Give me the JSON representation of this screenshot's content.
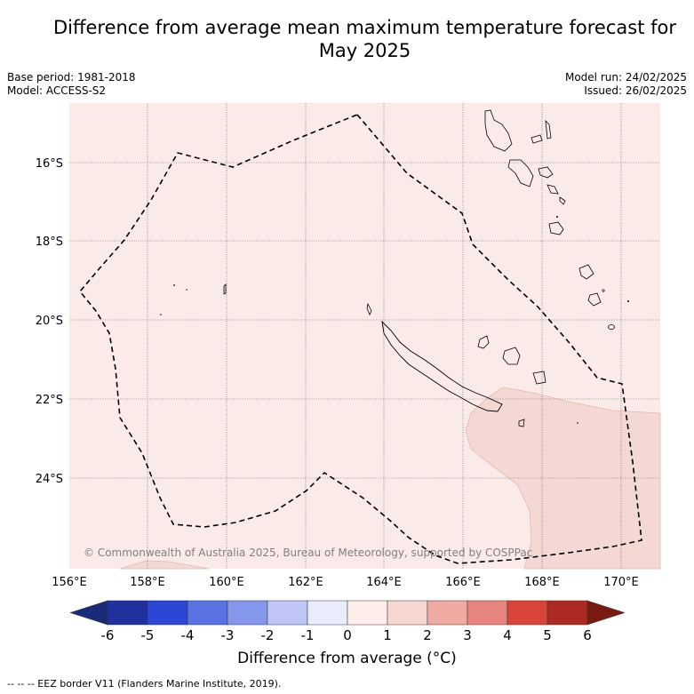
{
  "title_line1": "Difference from average mean maximum temperature forecast for",
  "title_line2": "May 2025",
  "meta": {
    "base_period": "Base period: 1981-2018",
    "model": "Model: ACCESS-S2",
    "model_run": "Model run: 24/02/2025",
    "issued": "Issued: 26/02/2025"
  },
  "map": {
    "lon_ticks": [
      "156°E",
      "158°E",
      "160°E",
      "162°E",
      "164°E",
      "166°E",
      "168°E",
      "170°E"
    ],
    "lat_ticks": [
      "16°S",
      "18°S",
      "20°S",
      "22°S",
      "24°S"
    ],
    "copyright": "© Commonwealth of Australia 2025, Bureau of Meteorology, supported by COSPPac"
  },
  "colorbar": {
    "ticks": [
      "-6",
      "-5",
      "-4",
      "-3",
      "-2",
      "-1",
      "0",
      "1",
      "2",
      "3",
      "4",
      "5",
      "6"
    ],
    "colors": [
      "#20319e",
      "#2c47d6",
      "#5a73e3",
      "#8597ec",
      "#bfc6f4",
      "#e9ecfb",
      "#fdeeea",
      "#f6d6d1",
      "#efaaa4",
      "#e8847e",
      "#d9453b",
      "#ad2a24"
    ],
    "under_color": "#1a2a78",
    "over_color": "#7a1a15",
    "label": "Difference from average (°C)"
  },
  "footnote": "-- -- -- EEZ border V11 (Flanders Marine Institute, 2019).",
  "colors": {
    "background_anomaly": "#fbebe8",
    "warm_anomaly": "#f4d8d3",
    "cool_anomaly": "#fdf3f1"
  }
}
